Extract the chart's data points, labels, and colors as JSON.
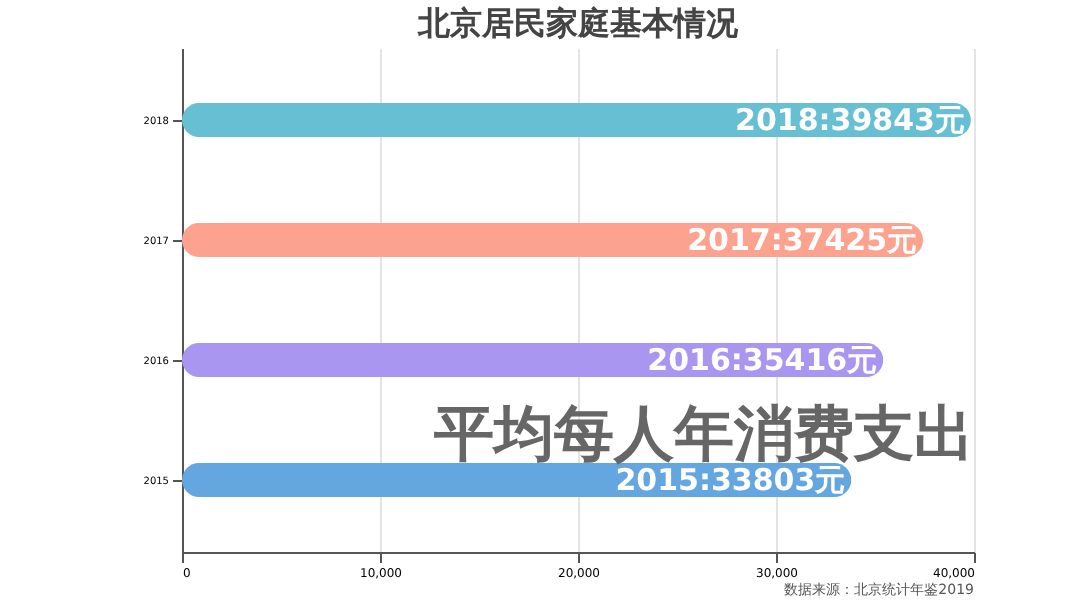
{
  "chart_data": {
    "type": "bar",
    "orientation": "horizontal",
    "title": "北京居民家庭基本情况",
    "categories": [
      "2018",
      "2017",
      "2016",
      "2015"
    ],
    "values": [
      39843,
      37425,
      35416,
      33803
    ],
    "colors": [
      "#66bfd2",
      "#fca28e",
      "#a996f0",
      "#64a6e0"
    ],
    "value_labels": [
      "2018:39843元",
      "2017:37425元",
      "2016:35416元",
      "2015:33803元"
    ],
    "xlim": [
      0,
      40000
    ],
    "xticks": [
      0,
      {
        "value": 10000,
        "label": "10,000"
      },
      {
        "value": 20000,
        "label": "20,000"
      },
      {
        "value": 30000,
        "label": "30,000"
      },
      {
        "value": 40000,
        "label": "40,000"
      }
    ],
    "grid": "x",
    "annotations": [
      "平均每人年消费支出",
      "数据来源：北京统计年鉴2019"
    ]
  }
}
